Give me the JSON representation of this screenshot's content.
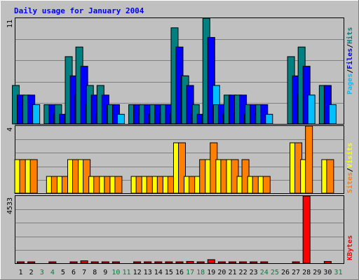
{
  "title": "Daily usage for January 2004",
  "colors": {
    "background": "#c0c0c0",
    "border": "#808080",
    "title": "#0000ff",
    "hits": "#008080",
    "files": "#0000ff",
    "pages": "#00c0ff",
    "visits": "#ffff00",
    "sites": "#ff8000",
    "kbytes": "#ff0000",
    "weekend_day": "#008040",
    "weekday": "#000000"
  },
  "legend": {
    "hits": "Hits",
    "files": "Files",
    "pages": "Pages",
    "visits": "Visits",
    "sites": "Sites",
    "kbytes": "KBytes",
    "separator": "/"
  },
  "chart_data": [
    {
      "type": "bar",
      "title": "Daily usage for January 2004",
      "panel": "hits-files-pages",
      "ymax_label": "11",
      "ylim": [
        0,
        11
      ],
      "categories": [
        "1",
        "2",
        "3",
        "4",
        "5",
        "6",
        "7",
        "8",
        "9",
        "10",
        "11",
        "12",
        "13",
        "14",
        "15",
        "16",
        "17",
        "18",
        "19",
        "20",
        "21",
        "22",
        "23",
        "24",
        "25",
        "26",
        "27",
        "28",
        "29",
        "30",
        "31"
      ],
      "series": [
        {
          "name": "Hits",
          "values": [
            4,
            3,
            0,
            2,
            2,
            7,
            8,
            4,
            4,
            2,
            0,
            2,
            2,
            2,
            2,
            10,
            5,
            2,
            11,
            2,
            3,
            3,
            2,
            2,
            0,
            0,
            7,
            8,
            0,
            4,
            0
          ]
        },
        {
          "name": "Files",
          "values": [
            3,
            3,
            0,
            2,
            1,
            5,
            6,
            3,
            3,
            2,
            0,
            2,
            2,
            2,
            2,
            8,
            4,
            1,
            9,
            2,
            3,
            3,
            2,
            2,
            0,
            0,
            5,
            6,
            0,
            4,
            0
          ]
        },
        {
          "name": "Pages",
          "values": [
            2,
            2,
            0,
            1,
            1,
            3,
            2,
            1,
            2,
            1,
            0,
            1,
            1,
            1,
            1,
            5,
            1,
            1,
            4,
            1,
            1,
            1,
            1,
            1,
            0,
            0,
            3,
            3,
            0,
            2,
            0
          ]
        }
      ]
    },
    {
      "type": "bar",
      "panel": "visits-sites",
      "ymax_label": "4",
      "ylim": [
        0,
        4
      ],
      "categories": [
        "1",
        "2",
        "3",
        "4",
        "5",
        "6",
        "7",
        "8",
        "9",
        "10",
        "11",
        "12",
        "13",
        "14",
        "15",
        "16",
        "17",
        "18",
        "19",
        "20",
        "21",
        "22",
        "23",
        "24",
        "25",
        "26",
        "27",
        "28",
        "29",
        "30",
        "31"
      ],
      "series": [
        {
          "name": "Visits",
          "values": [
            2,
            2,
            0,
            1,
            1,
            2,
            2,
            1,
            1,
            1,
            0,
            1,
            1,
            1,
            1,
            3,
            1,
            1,
            2,
            2,
            2,
            1,
            1,
            1,
            0,
            0,
            3,
            2,
            0,
            2,
            0
          ]
        },
        {
          "name": "Sites",
          "values": [
            2,
            2,
            0,
            1,
            1,
            2,
            2,
            1,
            1,
            1,
            0,
            1,
            1,
            1,
            1,
            3,
            1,
            2,
            3,
            2,
            2,
            2,
            1,
            1,
            0,
            0,
            3,
            4,
            0,
            2,
            0
          ]
        }
      ]
    },
    {
      "type": "bar",
      "panel": "kbytes",
      "ymax_label": "4533",
      "ylim": [
        0,
        4533
      ],
      "categories": [
        "1",
        "2",
        "3",
        "4",
        "5",
        "6",
        "7",
        "8",
        "9",
        "10",
        "11",
        "12",
        "13",
        "14",
        "15",
        "16",
        "17",
        "18",
        "19",
        "20",
        "21",
        "22",
        "23",
        "24",
        "25",
        "26",
        "27",
        "28",
        "29",
        "30",
        "31"
      ],
      "series": [
        {
          "name": "KBytes",
          "values": [
            40,
            40,
            0,
            40,
            0,
            80,
            160,
            60,
            60,
            60,
            0,
            60,
            60,
            60,
            60,
            80,
            120,
            20,
            240,
            60,
            60,
            60,
            60,
            60,
            0,
            0,
            60,
            4533,
            0,
            120,
            0
          ]
        }
      ]
    }
  ],
  "day_labels": [
    "1",
    "2",
    "3",
    "4",
    "5",
    "6",
    "7",
    "8",
    "9",
    "10",
    "11",
    "12",
    "13",
    "14",
    "15",
    "16",
    "17",
    "18",
    "19",
    "20",
    "21",
    "22",
    "23",
    "24",
    "25",
    "26",
    "27",
    "28",
    "29",
    "30",
    "31"
  ],
  "weekend_days": [
    "3",
    "4",
    "10",
    "11",
    "17",
    "18",
    "24",
    "25",
    "31"
  ]
}
